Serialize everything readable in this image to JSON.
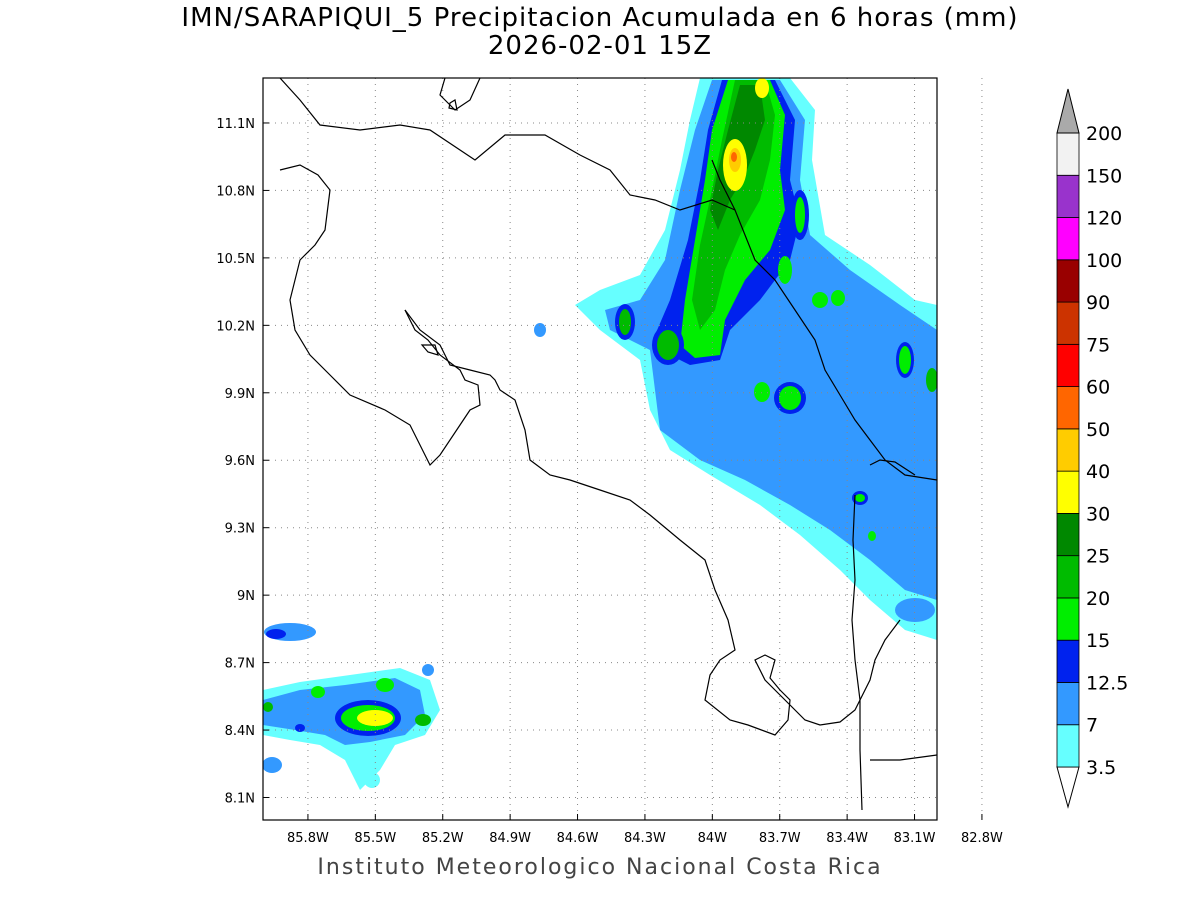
{
  "title": "IMN/SARAPIQUI_5 Precipitacion Acumulada en 6 horas (mm)",
  "subtitle": "2026-02-01 15Z",
  "footer": "Instituto Meteorologico Nacional Costa Rica",
  "map": {
    "lon_range": [
      -86.0,
      -83.0
    ],
    "lat_range": [
      8.0,
      11.3
    ],
    "lon_ticks": [
      {
        "value": -85.8,
        "label": "85.8W"
      },
      {
        "value": -85.5,
        "label": "85.5W"
      },
      {
        "value": -85.2,
        "label": "85.2W"
      },
      {
        "value": -84.9,
        "label": "84.9W"
      },
      {
        "value": -84.6,
        "label": "84.6W"
      },
      {
        "value": -84.3,
        "label": "84.3W"
      },
      {
        "value": -84.0,
        "label": "84W"
      },
      {
        "value": -83.7,
        "label": "83.7W"
      },
      {
        "value": -83.4,
        "label": "83.4W"
      },
      {
        "value": -83.1,
        "label": "83.1W"
      },
      {
        "value": -82.8,
        "label": "82.8W"
      }
    ],
    "lat_ticks": [
      {
        "value": 11.1,
        "label": "11.1N"
      },
      {
        "value": 10.8,
        "label": "10.8N"
      },
      {
        "value": 10.5,
        "label": "10.5N"
      },
      {
        "value": 10.2,
        "label": "10.2N"
      },
      {
        "value": 9.9,
        "label": "9.9N"
      },
      {
        "value": 9.6,
        "label": "9.6N"
      },
      {
        "value": 9.3,
        "label": "9.3N"
      },
      {
        "value": 9.0,
        "label": "9N"
      },
      {
        "value": 8.7,
        "label": "8.7N"
      },
      {
        "value": 8.4,
        "label": "8.4N"
      },
      {
        "value": 8.1,
        "label": "8.1N"
      }
    ],
    "grid": "dotted"
  },
  "colorbar": {
    "units": "mm",
    "levels": [
      {
        "label": "3.5",
        "color": "#66ffff"
      },
      {
        "label": "7",
        "color": "#3399ff"
      },
      {
        "label": "12.5",
        "color": "#0022ee"
      },
      {
        "label": "15",
        "color": "#00ee00"
      },
      {
        "label": "20",
        "color": "#00bb00"
      },
      {
        "label": "25",
        "color": "#008800"
      },
      {
        "label": "30",
        "color": "#ffff00"
      },
      {
        "label": "40",
        "color": "#ffcc00"
      },
      {
        "label": "50",
        "color": "#ff6600"
      },
      {
        "label": "60",
        "color": "#ff0000"
      },
      {
        "label": "75",
        "color": "#cc3300"
      },
      {
        "label": "90",
        "color": "#990000"
      },
      {
        "label": "100",
        "color": "#ff00ff"
      },
      {
        "label": "120",
        "color": "#9933cc"
      },
      {
        "label": "150",
        "color": "#f2f2f2"
      },
      {
        "label": "200",
        "color": "#aaaaaa"
      }
    ]
  }
}
